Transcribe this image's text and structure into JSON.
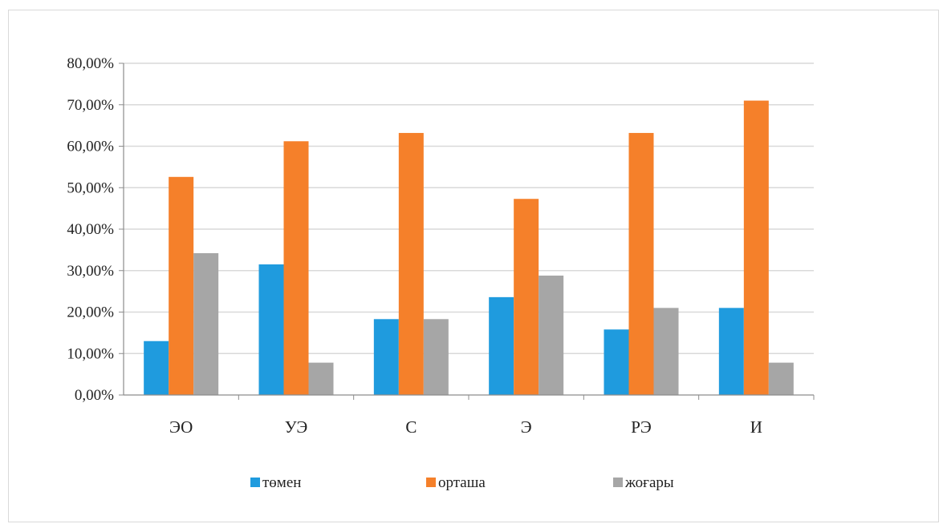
{
  "chart_data": {
    "type": "bar",
    "categories": [
      "ЭО",
      "УЭ",
      "С",
      "Э",
      "РЭ",
      "И"
    ],
    "series": [
      {
        "name": "төмен",
        "color": "#1f9bde",
        "values": [
          13.0,
          31.5,
          18.3,
          23.6,
          15.8,
          21.0
        ]
      },
      {
        "name": "орташа",
        "color": "#f5802a",
        "values": [
          52.6,
          61.2,
          63.2,
          47.3,
          63.2,
          71.0
        ]
      },
      {
        "name": "жоғары",
        "color": "#a6a6a6",
        "values": [
          34.2,
          7.8,
          18.3,
          28.8,
          21.0,
          7.8
        ]
      }
    ],
    "y_ticks": [
      "0,00%",
      "10,00%",
      "20,00%",
      "30,00%",
      "40,00%",
      "50,00%",
      "60,00%",
      "70,00%",
      "80,00%"
    ],
    "ylim": [
      0,
      80
    ],
    "grid": true,
    "legend_position": "bottom",
    "title": "",
    "xlabel": "",
    "ylabel": ""
  }
}
